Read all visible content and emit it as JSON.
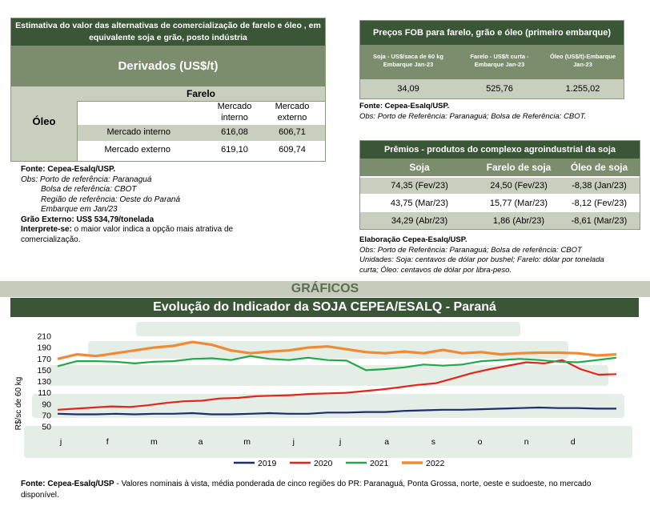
{
  "table1": {
    "title": "Estimativa do valor das alternativas de comercialização de farelo e óleo , em equivalente soja e grão, posto indústria",
    "subtitle": "Derivados (US$/t)",
    "farelo_label": "Farelo",
    "oleo_label": "Óleo",
    "col1": "Mercado interno",
    "col2": "Mercado externo",
    "rows": [
      {
        "label": "Mercado interno",
        "v1": "616,08",
        "v2": "606,71"
      },
      {
        "label": "Mercado externo",
        "v1": "619,10",
        "v2": "609,74"
      }
    ]
  },
  "notes1": {
    "fonte": "Fonte: Cepea-Esalq/USP.",
    "obs1": "Obs: Porto de referência: Paranaguá",
    "obs2": "Bolsa de referência: CBOT",
    "obs3": "Região de referência: Oeste do Paraná",
    "obs4": "Embarque em Jan/23",
    "grao": "Grão Externo: US$ 534,79/tonelada",
    "interprete_label": "Interprete-se:",
    "interprete_text": " o maior valor indica a opção mais atrativa de comercialização."
  },
  "table2": {
    "title": "Preços FOB para farelo, grão e óleo (primeiro embarque)",
    "headers": [
      "Soja - US$/saca de 60 kg Embarque Jan-23",
      "Farelo - US$/t curta - Embarque Jan-23",
      "Óleo (US$/t)-Embarque Jan-23"
    ],
    "values": [
      "34,09",
      "525,76",
      "1.255,02"
    ],
    "fonte": "Fonte: Cepea-Esalq/USP.",
    "obs": "Obs: Porto de Referência: Paranaguá; Bolsa de Referência: CBOT."
  },
  "table3": {
    "title": "Prêmios - produtos do complexo agroindustrial da soja",
    "headers": [
      "Soja",
      "Farelo de soja",
      "Óleo de soja"
    ],
    "rows": [
      [
        "74,35 (Fev/23)",
        "24,50  (Fev/23)",
        "-8,38  (Jan/23)"
      ],
      [
        "43,75  (Mar/23)",
        "15,77  (Mar/23)",
        "-8,12  (Fev/23)"
      ],
      [
        "34,29  (Abr/23)",
        "1,86  (Abr/23)",
        "-8,61  (Mar/23)"
      ]
    ],
    "elab": "Elaboração Cepea-Esalq/USP.",
    "obs": "Obs: Porto de Referência: Paranaguá; Bolsa de referência: CBOT",
    "unidades1": "Unidades: Soja: centavos de dólar por bushel; Farelo: dólar por tonelada",
    "unidades2": "curta; Óleo: centavos de dólar por libra-peso."
  },
  "graficos_label": "GRÁFICOS",
  "chart_title": "Evolução do Indicador da SOJA CEPEA/ESALQ - Paraná",
  "footer_fonte_label": "Fonte: Cepea-Esalq/USP",
  "footer_text": " - Valores nominais à vista, média ponderada de cinco regiões do PR: Paranaguá, Ponta Grossa, norte, oeste e sudoeste, no mercado disponível.",
  "chart_data": {
    "type": "line",
    "title": "Evolução do Indicador da SOJA CEPEA/ESALQ - Paraná",
    "ylabel": "R$/sc de 60 kg",
    "xlabel": "",
    "ylim": [
      50,
      210
    ],
    "yticks": [
      210,
      190,
      170,
      150,
      130,
      110,
      90,
      70,
      50
    ],
    "x_ticks": [
      "j",
      "f",
      "m",
      "a",
      "m",
      "j",
      "j",
      "a",
      "s",
      "o",
      "n",
      "d"
    ],
    "grid": false,
    "legend": "bottom",
    "series": [
      {
        "name": "2019",
        "color": "#1f2d6e",
        "values": [
          73,
          72,
          72,
          73,
          72,
          73,
          73,
          74,
          72,
          72,
          73,
          74,
          73,
          73,
          75,
          75,
          76,
          76,
          78,
          79,
          80,
          80,
          81,
          82,
          83,
          84,
          83,
          83,
          82,
          82
        ]
      },
      {
        "name": "2020",
        "color": "#e3241b",
        "values": [
          80,
          82,
          84,
          86,
          85,
          88,
          92,
          95,
          96,
          100,
          101,
          104,
          105,
          106,
          108,
          109,
          110,
          113,
          116,
          120,
          124,
          127,
          136,
          145,
          152,
          158,
          164,
          162,
          168,
          152,
          142,
          143
        ]
      },
      {
        "name": "2021",
        "color": "#22a84a",
        "values": [
          157,
          166,
          166,
          165,
          162,
          165,
          166,
          170,
          171,
          168,
          175,
          170,
          168,
          172,
          168,
          167,
          150,
          152,
          155,
          160,
          158,
          160,
          166,
          168,
          170,
          168,
          165,
          164,
          168,
          172
        ]
      },
      {
        "name": "2022",
        "color": "#f08a33",
        "values": [
          170,
          178,
          175,
          180,
          185,
          190,
          193,
          200,
          195,
          185,
          180,
          183,
          185,
          190,
          192,
          187,
          182,
          180,
          183,
          180,
          186,
          180,
          182,
          178,
          180,
          181,
          181,
          180,
          176,
          178
        ]
      }
    ]
  }
}
